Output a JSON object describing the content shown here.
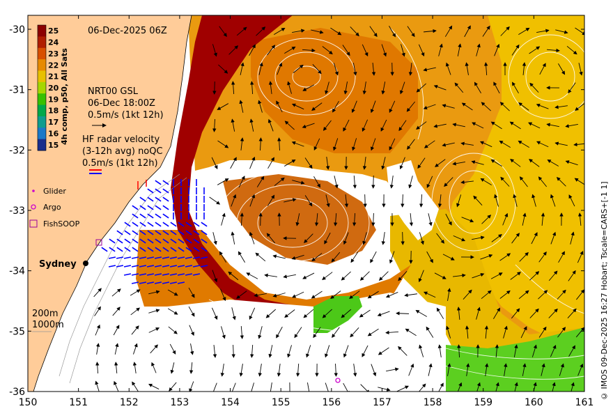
{
  "map": {
    "date_label": "06-Dec-2025 06Z",
    "colorbar": {
      "label": "4h comp, p50, All Sats",
      "values": [
        25,
        24,
        23,
        22,
        21,
        20,
        19,
        18,
        17,
        16,
        15
      ],
      "colors": [
        "#8c0000",
        "#b01d00",
        "#d84f00",
        "#e78a00",
        "#e8c000",
        "#a6d600",
        "#37c000",
        "#00a84a",
        "#0e9c8e",
        "#1a78c8",
        "#1a2e8c"
      ]
    },
    "legend": {
      "nrt_title": "NRT00 GSL",
      "nrt_time": "06-Dec 18:00Z",
      "nrt_scale": "0.5m/s (1kt 12h)",
      "hf_title": "HF radar velocity",
      "hf_sub": "(3-12h avg) noQC",
      "hf_scale": "0.5m/s (1kt 12h)",
      "glider": "Glider",
      "argo": "Argo",
      "fishsoop": "FishSOOP"
    },
    "places": {
      "sydney": "Sydney"
    },
    "depth_labels": [
      "200m",
      "1000m"
    ],
    "axes": {
      "lon_ticks": [
        "150",
        "151",
        "152",
        "153",
        "154",
        "155",
        "156",
        "157",
        "158",
        "159",
        "160",
        "161"
      ],
      "lat_ticks": [
        "-30",
        "-31",
        "-32",
        "-33",
        "-34",
        "-35",
        "-36"
      ]
    },
    "colors": {
      "land": "#ffcc99",
      "warm_core": "#a00000",
      "ocean_orange": "#e8890a",
      "ocean_yellow": "#f0c000",
      "ocean_green": "#5ccf20",
      "hf_arrow": "#0000ff"
    },
    "credit": "© IMOS 09-Dec-2025 16:27 Hobart; Tscale=CARS+[-1 1]"
  }
}
